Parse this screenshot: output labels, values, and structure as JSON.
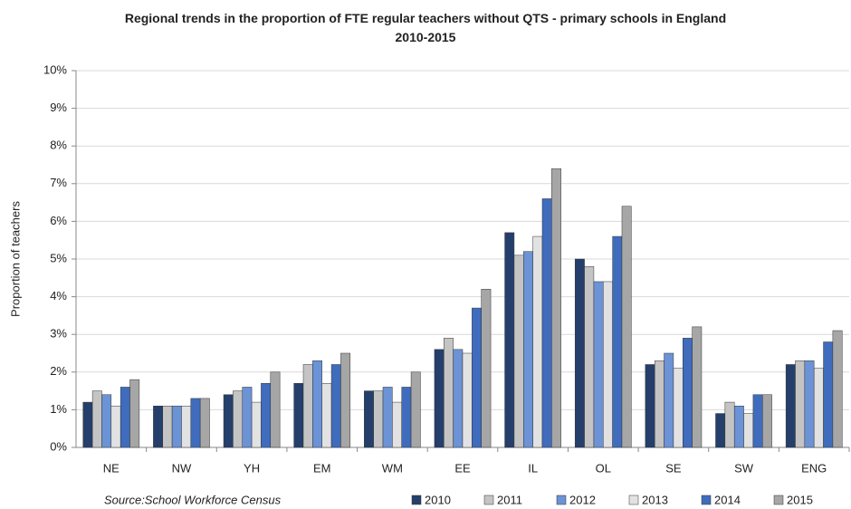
{
  "chart_data": {
    "type": "bar",
    "title": "Regional trends in the proportion of FTE regular teachers without QTS - primary schools in England 2010-2015",
    "y_label": "Proportion of teachers",
    "annotation": "Source:School Workforce Census",
    "categories": [
      "NE",
      "NW",
      "YH",
      "EM",
      "WM",
      "EE",
      "IL",
      "OL",
      "SE",
      "SW",
      "ENG"
    ],
    "series": [
      {
        "name": "2010",
        "color": "#243f6b",
        "values": [
          1.2,
          1.1,
          1.4,
          1.7,
          1.5,
          2.6,
          5.7,
          5.0,
          2.2,
          0.9,
          2.2
        ]
      },
      {
        "name": "2011",
        "color": "#c4c4c4",
        "values": [
          1.5,
          1.1,
          1.5,
          2.2,
          1.5,
          2.9,
          5.1,
          4.8,
          2.3,
          1.2,
          2.3
        ]
      },
      {
        "name": "2012",
        "color": "#6b93d6",
        "values": [
          1.4,
          1.1,
          1.6,
          2.3,
          1.6,
          2.6,
          5.2,
          4.4,
          2.5,
          1.1,
          2.3
        ]
      },
      {
        "name": "2013",
        "color": "#e2e2e2",
        "values": [
          1.1,
          1.1,
          1.2,
          1.7,
          1.2,
          2.5,
          5.6,
          4.4,
          2.1,
          0.9,
          2.1
        ]
      },
      {
        "name": "2014",
        "color": "#3f6cbd",
        "values": [
          1.6,
          1.3,
          1.7,
          2.2,
          1.6,
          3.7,
          6.6,
          5.6,
          2.9,
          1.4,
          2.8
        ]
      },
      {
        "name": "2015",
        "color": "#a6a6a6",
        "values": [
          1.8,
          1.3,
          2.0,
          2.5,
          2.0,
          4.2,
          7.4,
          6.4,
          3.2,
          1.4,
          3.1
        ]
      }
    ],
    "ylim": [
      0,
      10
    ],
    "yticks": [
      {
        "value": 0,
        "label": "0%"
      },
      {
        "value": 1,
        "label": "1%"
      },
      {
        "value": 2,
        "label": "2%"
      },
      {
        "value": 3,
        "label": "3%"
      },
      {
        "value": 4,
        "label": "4%"
      },
      {
        "value": 5,
        "label": "5%"
      },
      {
        "value": 6,
        "label": "6%"
      },
      {
        "value": 7,
        "label": "7%"
      },
      {
        "value": 8,
        "label": "8%"
      },
      {
        "value": 9,
        "label": "9%"
      },
      {
        "value": 10,
        "label": "10%"
      }
    ],
    "grid": true
  }
}
